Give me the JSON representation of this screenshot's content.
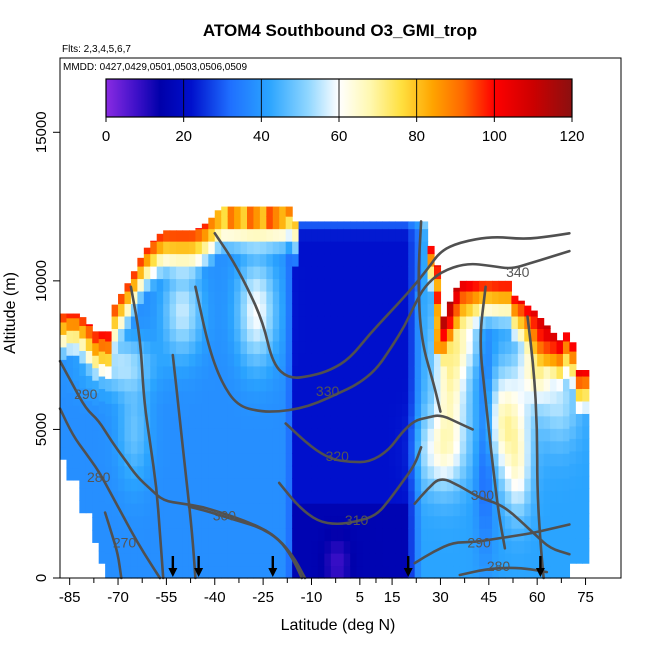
{
  "chart_data": {
    "type": "heatmap",
    "title": "ATOM4 Southbound O3_GMI_trop",
    "subtitle_flights": "Flts: 2,3,4,5,6,7",
    "subtitle_dates": "MMDD: 0427,0429,0501,0503,0506,0509",
    "xlabel": "Latitude (deg N)",
    "ylabel": "Altitude (m)",
    "xlim": [
      -88,
      86
    ],
    "ylim": [
      0,
      17500
    ],
    "xticks": [
      -85,
      -70,
      -55,
      -40,
      -25,
      -10,
      5,
      15,
      30,
      45,
      60,
      75
    ],
    "yticks": [
      0,
      5000,
      10000,
      15000
    ],
    "colorbar": {
      "min": 0,
      "max": 120,
      "ticks": [
        0,
        20,
        40,
        60,
        80,
        100,
        120
      ],
      "stops": [
        {
          "v": 0,
          "c": "#8a2be2"
        },
        {
          "v": 8,
          "c": "#3c10c8"
        },
        {
          "v": 14,
          "c": "#0000aa"
        },
        {
          "v": 22,
          "c": "#0010cc"
        },
        {
          "v": 32,
          "c": "#1f6fff"
        },
        {
          "v": 42,
          "c": "#2aa4ff"
        },
        {
          "v": 52,
          "c": "#8fd6ff"
        },
        {
          "v": 60,
          "c": "#ffffff"
        },
        {
          "v": 68,
          "c": "#fff8b0"
        },
        {
          "v": 76,
          "c": "#ffe040"
        },
        {
          "v": 84,
          "c": "#ffa500"
        },
        {
          "v": 92,
          "c": "#ff6600"
        },
        {
          "v": 100,
          "c": "#ff0000"
        },
        {
          "v": 110,
          "c": "#cc0000"
        },
        {
          "v": 120,
          "c": "#8b1010"
        }
      ]
    },
    "contour_labels": [
      {
        "text": "340",
        "x": 54,
        "y": 10300
      },
      {
        "text": "330",
        "x": -5,
        "y": 6300
      },
      {
        "text": "320",
        "x": -2,
        "y": 4100
      },
      {
        "text": "310",
        "x": 4,
        "y": 1950
      },
      {
        "text": "300",
        "x": -37,
        "y": 2100
      },
      {
        "text": "300",
        "x": 43,
        "y": 2800
      },
      {
        "text": "290",
        "x": -80,
        "y": 6200
      },
      {
        "text": "290",
        "x": 42,
        "y": 1200
      },
      {
        "text": "280",
        "x": -76,
        "y": 3400
      },
      {
        "text": "280",
        "x": 48,
        "y": 400
      },
      {
        "text": "270",
        "x": -68,
        "y": 1200
      }
    ],
    "flight_arrows_lat": [
      -53,
      -45,
      -22,
      20,
      61
    ]
  }
}
